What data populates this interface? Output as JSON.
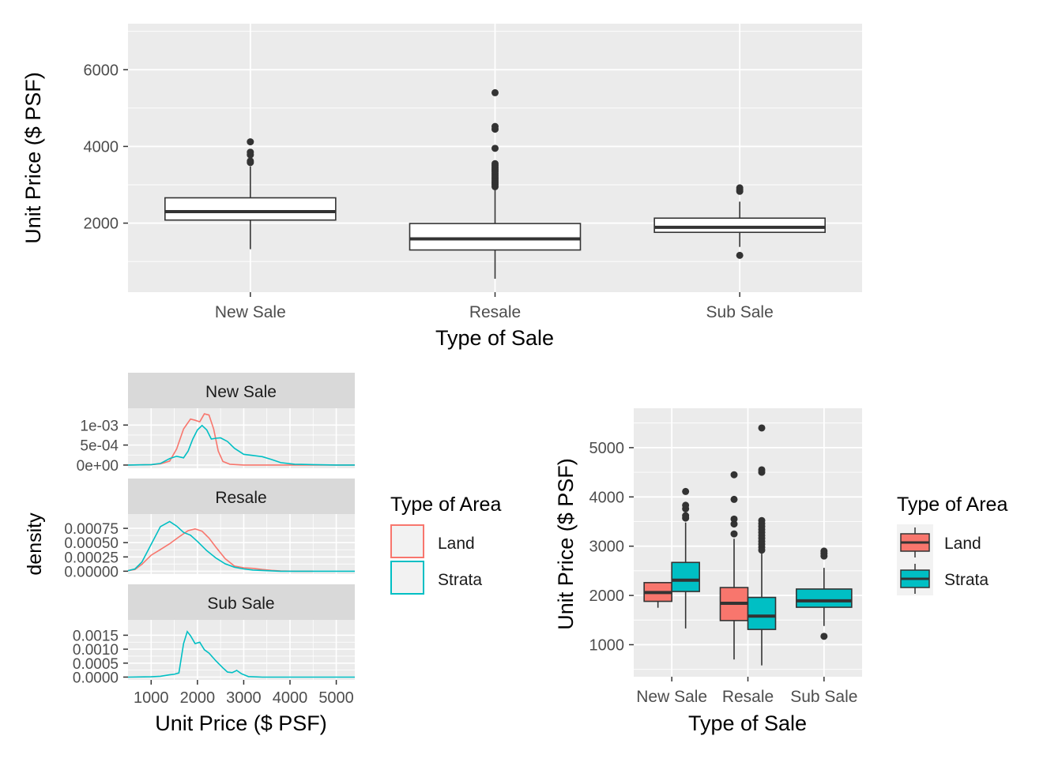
{
  "colors": {
    "panel_bg": "#EBEBEB",
    "grid_major": "#FFFFFF",
    "strip_bg": "#D9D9D9",
    "box_fill": "#FFFFFF",
    "box_line": "#333333",
    "land": "#F8766D",
    "strata": "#00BFC4",
    "axis_text": "#4D4D4D",
    "title_text": "#000000"
  },
  "chart_data": [
    {
      "type": "box",
      "id": "top",
      "xlabel": "Type of Sale",
      "ylabel": "Unit Price ($ PSF)",
      "categories": [
        "New Sale",
        "Resale",
        "Sub Sale"
      ],
      "ylim": [
        200,
        7200
      ],
      "yticks": [
        2000,
        4000,
        6000
      ],
      "ytick_labels": [
        "2000",
        "4000",
        "6000"
      ],
      "boxes": [
        {
          "category": "New Sale",
          "low": 1320,
          "q1": 2080,
          "median": 2300,
          "q3": 2660,
          "high": 3480,
          "outliers": [
            3580,
            3620,
            3780,
            3850,
            4120
          ]
        },
        {
          "category": "Resale",
          "low": 550,
          "q1": 1300,
          "median": 1590,
          "q3": 1990,
          "high": 2900,
          "outliers": [
            2950,
            3000,
            3050,
            3100,
            3150,
            3200,
            3250,
            3300,
            3350,
            3400,
            3450,
            3500,
            3550,
            3950,
            4450,
            4520,
            5400
          ]
        },
        {
          "category": "Sub Sale",
          "low": 1380,
          "q1": 1760,
          "median": 1890,
          "q3": 2130,
          "high": 2560,
          "outliers": [
            1160,
            2830,
            2870,
            2920
          ]
        }
      ]
    },
    {
      "type": "density",
      "id": "bottom-left",
      "xlabel": "Unit Price ($ PSF)",
      "ylabel": "density",
      "xlim": [
        500,
        5400
      ],
      "xticks": [
        1000,
        2000,
        3000,
        4000,
        5000
      ],
      "xtick_labels": [
        "1000",
        "2000",
        "3000",
        "4000",
        "5000"
      ],
      "facets": [
        {
          "label": "New Sale",
          "ylim": [
            -8e-05,
            0.00142
          ],
          "yticks": [
            0,
            0.0005,
            0.001
          ],
          "ytick_labels": [
            "0e+00",
            "5e-04",
            "1e-03"
          ],
          "series": [
            {
              "name": "Land",
              "x": [
                500,
                1000,
                1200,
                1400,
                1550,
                1700,
                1850,
                1950,
                2050,
                2150,
                2250,
                2350,
                2450,
                2550,
                2700,
                3000,
                5400
              ],
              "y": [
                0,
                1e-05,
                3e-05,
                0.0001,
                0.0004,
                0.0009,
                0.00115,
                0.00112,
                0.00108,
                0.00128,
                0.00125,
                0.0009,
                0.00035,
                9e-05,
                2e-05,
                0,
                0
              ]
            },
            {
              "name": "Strata",
              "x": [
                500,
                1000,
                1200,
                1400,
                1550,
                1700,
                1800,
                1900,
                2000,
                2100,
                2200,
                2300,
                2400,
                2500,
                2650,
                2800,
                3000,
                3200,
                3400,
                3600,
                3800,
                4100,
                4500,
                5000,
                5400
              ],
              "y": [
                0,
                1e-05,
                4e-05,
                0.00016,
                0.00022,
                0.00018,
                0.00035,
                0.00065,
                0.00088,
                0.00099,
                0.00088,
                0.00065,
                0.00067,
                0.00068,
                0.00059,
                0.00042,
                0.00027,
                0.00024,
                0.00021,
                0.00014,
                6e-05,
                2e-05,
                1e-05,
                0,
                0
              ]
            }
          ]
        },
        {
          "label": "Resale",
          "ylim": [
            -5e-05,
            0.001
          ],
          "yticks": [
            0,
            0.00025,
            0.0005,
            0.00075
          ],
          "ytick_labels": [
            "0.00000",
            "0.00025",
            "0.00050",
            "0.00075"
          ],
          "series": [
            {
              "name": "Land",
              "x": [
                500,
                650,
                800,
                1000,
                1200,
                1400,
                1600,
                1800,
                1950,
                2100,
                2250,
                2400,
                2600,
                2800,
                3000,
                3200,
                3400,
                3600,
                3800,
                4100,
                4500
              ],
              "y": [
                1e-05,
                3e-05,
                0.00012,
                0.00028,
                0.00038,
                0.00048,
                0.0006,
                0.00071,
                0.00074,
                0.0007,
                0.00058,
                0.00042,
                0.00022,
                9e-05,
                6e-05,
                5e-05,
                3e-05,
                1.5e-05,
                5e-06,
                0,
                0
              ]
            },
            {
              "name": "Strata",
              "x": [
                500,
                650,
                800,
                1000,
                1200,
                1400,
                1550,
                1700,
                1850,
                2000,
                2200,
                2400,
                2600,
                2800,
                3000,
                3200,
                3500,
                3800,
                4200,
                5000,
                5400
              ],
              "y": [
                1e-05,
                4e-05,
                0.00016,
                0.00047,
                0.00078,
                0.00087,
                0.00079,
                0.00068,
                0.00063,
                0.00052,
                0.00036,
                0.00023,
                0.00013,
                7e-05,
                4e-05,
                2e-05,
                1e-05,
                0,
                0,
                0,
                0
              ]
            }
          ]
        },
        {
          "label": "Sub Sale",
          "ylim": [
            -0.0001,
            0.00205
          ],
          "yticks": [
            0,
            0.0005,
            0.001,
            0.0015
          ],
          "ytick_labels": [
            "0.0000",
            "0.0005",
            "0.0010",
            "0.0015"
          ],
          "series": [
            {
              "name": "Strata",
              "x": [
                500,
                1000,
                1200,
                1400,
                1500,
                1600,
                1700,
                1780,
                1850,
                1950,
                2050,
                2150,
                2250,
                2400,
                2550,
                2650,
                2750,
                2850,
                2950,
                3100,
                3400,
                4000,
                5000,
                5400
              ],
              "y": [
                0,
                1e-05,
                3e-05,
                8e-05,
                0.0001,
                0.00015,
                0.0012,
                0.00163,
                0.00148,
                0.0012,
                0.00125,
                0.00098,
                0.00086,
                0.00058,
                0.00033,
                0.00018,
                0.00016,
                0.00024,
                0.00012,
                2e-05,
                0,
                0,
                0,
                0
              ]
            }
          ]
        }
      ],
      "legend": {
        "title": "Type of Area",
        "items": [
          "Land",
          "Strata"
        ]
      }
    },
    {
      "type": "box",
      "id": "bottom-right",
      "xlabel": "Type of Sale",
      "ylabel": "Unit Price ($ PSF)",
      "categories": [
        "New Sale",
        "Resale",
        "Sub Sale"
      ],
      "ylim": [
        350,
        5800
      ],
      "yticks": [
        1000,
        2000,
        3000,
        4000,
        5000
      ],
      "ytick_labels": [
        "1000",
        "2000",
        "3000",
        "4000",
        "5000"
      ],
      "boxes": [
        {
          "category": "New Sale",
          "group": "Land",
          "low": 1750,
          "q1": 1880,
          "median": 2060,
          "q3": 2260,
          "high": 2260,
          "outliers": []
        },
        {
          "category": "New Sale",
          "group": "Strata",
          "low": 1330,
          "q1": 2080,
          "median": 2310,
          "q3": 2670,
          "high": 3480,
          "outliers": [
            3570,
            3620,
            3760,
            3830,
            4110
          ]
        },
        {
          "category": "Resale",
          "group": "Land",
          "low": 700,
          "q1": 1490,
          "median": 1840,
          "q3": 2160,
          "high": 3150,
          "outliers": [
            3250,
            3450,
            3550,
            3950,
            4450
          ]
        },
        {
          "category": "Resale",
          "group": "Strata",
          "low": 580,
          "q1": 1310,
          "median": 1580,
          "q3": 1960,
          "high": 2850,
          "outliers": [
            2920,
            2980,
            3040,
            3100,
            3160,
            3220,
            3280,
            3340,
            3400,
            3460,
            3520,
            4500,
            4550,
            5400
          ]
        },
        {
          "category": "Sub Sale",
          "group": "Strata",
          "low": 1380,
          "q1": 1760,
          "median": 1890,
          "q3": 2130,
          "high": 2560,
          "outliers": [
            1170,
            2800,
            2850,
            2900
          ]
        }
      ],
      "legend": {
        "title": "Type of Area",
        "items": [
          "Land",
          "Strata"
        ]
      }
    }
  ]
}
